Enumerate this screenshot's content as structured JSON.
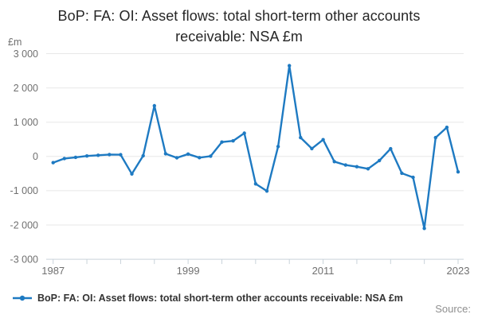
{
  "title": "BoP: FA: OI: Asset flows: total short-term other accounts receivable: NSA £m",
  "unit_label": "£m",
  "legend": {
    "label": "BoP: FA: OI: Asset flows: total short-term other accounts receivable: NSA £m"
  },
  "source_label": "Source:",
  "colors": {
    "line": "#1e7ac2",
    "grid": "#e7e7e7",
    "axis": "#c9d3da",
    "tick_text": "#707070",
    "title_text": "#262626",
    "legend_text": "#333333",
    "source_text": "#8f8f8f",
    "background": "#ffffff"
  },
  "chart_data": {
    "type": "line",
    "title": "BoP: FA: OI: Asset flows: total short-term other accounts receivable: NSA £m",
    "ylabel": "£m",
    "xlabel": "",
    "grid": true,
    "legend_position": "bottom-left",
    "marker": "circle",
    "ylim": [
      -3000,
      3000
    ],
    "ytick_values": [
      3000,
      2000,
      1000,
      0,
      -1000,
      -2000,
      -3000
    ],
    "ytick_labels": [
      "3 000",
      "2 000",
      "1 000",
      "0",
      "-1 000",
      "-2 000",
      "-3 000"
    ],
    "xtick_labeled_years": [
      1987,
      1999,
      2011,
      2023
    ],
    "xtick_minor_interval_years": 3,
    "x": [
      1987,
      1988,
      1989,
      1990,
      1991,
      1992,
      1993,
      1994,
      1995,
      1996,
      1997,
      1998,
      1999,
      2000,
      2001,
      2002,
      2003,
      2004,
      2005,
      2006,
      2007,
      2008,
      2009,
      2010,
      2011,
      2012,
      2013,
      2014,
      2015,
      2016,
      2017,
      2018,
      2019,
      2020,
      2021,
      2022,
      2023
    ],
    "series": [
      {
        "name": "BoP: FA: OI: Asset flows: total short-term other accounts receivable: NSA £m",
        "color": "#1e7ac2",
        "values": [
          -180,
          -60,
          -25,
          15,
          35,
          55,
          50,
          -510,
          20,
          1480,
          80,
          -40,
          70,
          -35,
          10,
          420,
          455,
          680,
          -800,
          -1010,
          290,
          2650,
          550,
          230,
          490,
          -150,
          -250,
          -300,
          -360,
          -120,
          225,
          -490,
          -610,
          -2100,
          550,
          850,
          -450
        ]
      }
    ]
  }
}
